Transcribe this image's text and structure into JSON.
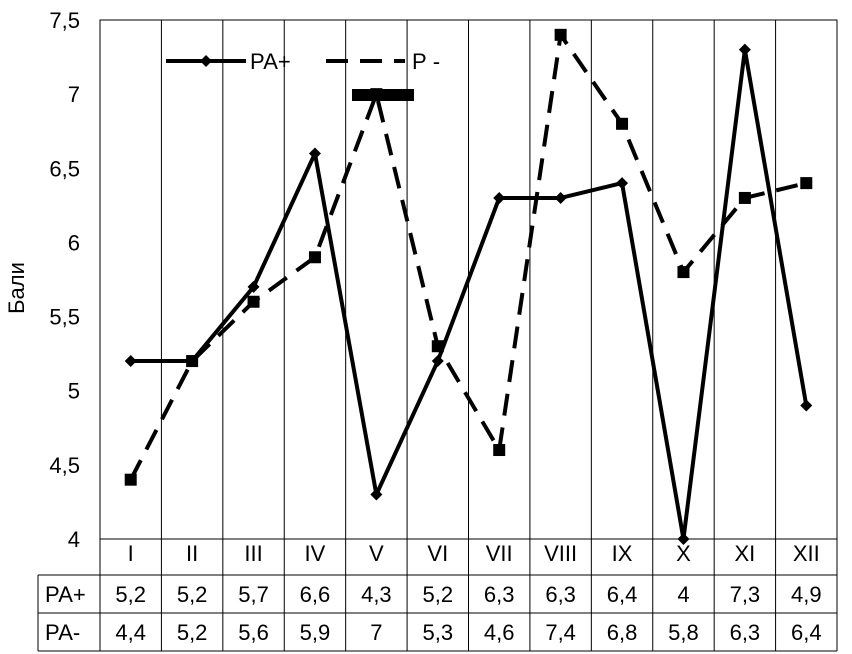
{
  "chart_data": {
    "type": "line",
    "title": "",
    "xlabel": "",
    "ylabel": "Бали",
    "ylim": [
      4,
      7.5
    ],
    "yticks": [
      "4",
      "4,5",
      "5",
      "5,5",
      "6",
      "6,5",
      "7",
      "7,5"
    ],
    "categories": [
      "I",
      "II",
      "III",
      "IV",
      "V",
      "VI",
      "VII",
      "VIII",
      "IX",
      "X",
      "XI",
      "XII"
    ],
    "grid": "vertical",
    "legend_position": "top",
    "series": [
      {
        "name": "РА+",
        "values": [
          5.2,
          5.2,
          5.7,
          6.6,
          4.3,
          5.2,
          6.3,
          6.3,
          6.4,
          4,
          7.3,
          4.9
        ],
        "labels": [
          "5,2",
          "5,2",
          "5,7",
          "6,6",
          "4,3",
          "5,2",
          "6,3",
          "6,3",
          "6,4",
          "4",
          "7,3",
          "4,9"
        ],
        "style": "solid",
        "marker": "diamond",
        "color": "#000000"
      },
      {
        "name": "РА-",
        "values": [
          4.4,
          5.2,
          5.6,
          5.9,
          7,
          5.3,
          4.6,
          7.4,
          6.8,
          5.8,
          6.3,
          6.4
        ],
        "labels": [
          "4,4",
          "5,2",
          "5,6",
          "5,9",
          "7",
          "5,3",
          "4,6",
          "7,4",
          "6,8",
          "5,8",
          "6,3",
          "6,4"
        ],
        "style": "dashed",
        "marker": "square",
        "color": "#000000"
      }
    ],
    "legend": {
      "entries": [
        "РА+",
        "Р  -"
      ]
    },
    "table": {
      "row_labels": [
        "РА+",
        "РА-"
      ]
    }
  }
}
